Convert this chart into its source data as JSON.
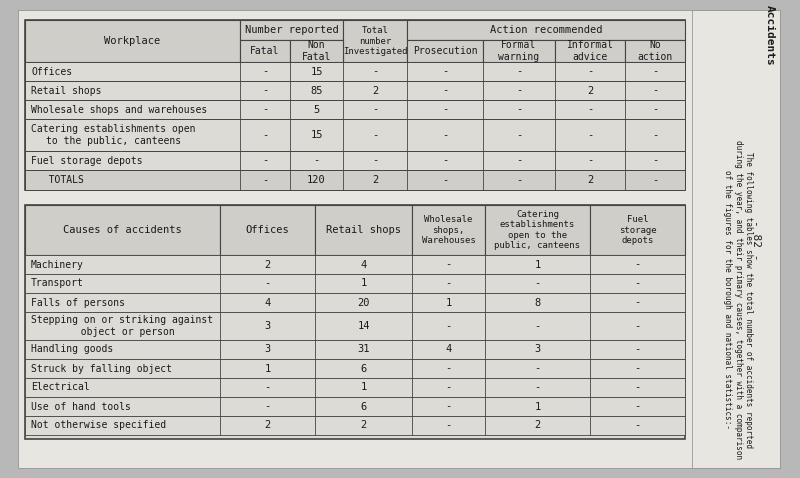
{
  "outer_bg": "#b8b8b8",
  "inner_bg": "#e8e6e0",
  "table_bg": "#dddbd5",
  "header_bg": "#d0cec8",
  "line_color": "#444444",
  "text_color": "#1a1a1a",
  "table1": {
    "rows": [
      [
        "Offices",
        "-",
        "15",
        "-",
        "-",
        "-",
        "-",
        "-"
      ],
      [
        "Retail shops",
        "-",
        "85",
        "2",
        "-",
        "-",
        "2",
        "-"
      ],
      [
        "Wholesale shops and warehouses",
        "-",
        "5",
        "-",
        "-",
        "-",
        "-",
        "-"
      ],
      [
        "Catering establishments open\nto the public, canteens",
        "-",
        "15",
        "-",
        "-",
        "-",
        "-",
        "-"
      ],
      [
        "Fuel storage depots",
        "-",
        "-",
        "-",
        "-",
        "-",
        "-",
        "-"
      ],
      [
        "   TOTALS",
        "-",
        "120",
        "2",
        "-",
        "-",
        "2",
        "-"
      ]
    ]
  },
  "table2": {
    "header_row": [
      "Causes of accidents",
      "Offices",
      "Retail shops",
      "Wholesale\nshops,\nWarehouses",
      "Catering\nestablishments\nopen to the\npublic, canteens",
      "Fuel\nstorage\ndepots"
    ],
    "rows": [
      [
        "Machinery",
        "2",
        "4",
        "-",
        "1",
        "-"
      ],
      [
        "Transport",
        "-",
        "1",
        "-",
        "-",
        "-"
      ],
      [
        "Falls of persons",
        "4",
        "20",
        "1",
        "8",
        "-"
      ],
      [
        "Stepping on or striking against\n  object or person",
        "3",
        "14",
        "-",
        "-",
        "-"
      ],
      [
        "Handling goods",
        "3",
        "31",
        "4",
        "3",
        "-"
      ],
      [
        "Struck by falling object",
        "1",
        "6",
        "-",
        "-",
        "-"
      ],
      [
        "Electrical",
        "-",
        "1",
        "-",
        "-",
        "-"
      ],
      [
        "Use of hand tools",
        "-",
        "6",
        "-",
        "1",
        "-"
      ],
      [
        "Not otherwise specified",
        "2",
        "2",
        "-",
        "2",
        "-"
      ]
    ]
  },
  "side_title": "Accidents",
  "side_lines": [
    "The following tables show the total number of accidents reported",
    "during the year, and their primary causes, together with a comparison",
    "of the figures for the borough and national statistics:-"
  ],
  "page_number": "- 82 -"
}
